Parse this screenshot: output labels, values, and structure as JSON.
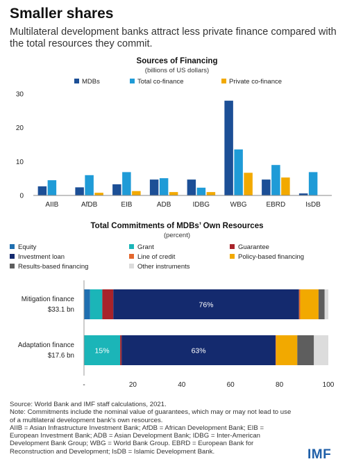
{
  "headline": "Smaller shares",
  "subheadline": "Multilateral development banks attract less private finance compared with the total resources they commit.",
  "chart_data": [
    {
      "type": "bar",
      "title": "Sources of Financing",
      "subtitle": "(billions of US dollars)",
      "categories": [
        "AIIB",
        "AfDB",
        "EIB",
        "ADB",
        "IDBG",
        "WBG",
        "EBRD",
        "IsDB"
      ],
      "series": [
        {
          "name": "MDBs",
          "color": "#1c4f96",
          "values": [
            2.7,
            2.4,
            3.3,
            4.7,
            4.7,
            28.0,
            4.7,
            0.6
          ]
        },
        {
          "name": "Total co-finance",
          "color": "#1f9bd7",
          "values": [
            4.5,
            6.0,
            6.9,
            5.1,
            2.3,
            13.6,
            9.0,
            6.9
          ]
        },
        {
          "name": "Private co-finance",
          "color": "#f2a900",
          "values": [
            0.0,
            0.8,
            1.3,
            1.0,
            1.0,
            6.7,
            5.3,
            0.0
          ]
        }
      ],
      "ylim": [
        0,
        30
      ],
      "yticks": [
        0,
        10,
        20,
        30
      ],
      "xlabel": "",
      "ylabel": "",
      "grid": false,
      "legend_position": "top"
    },
    {
      "type": "bar",
      "stacked": true,
      "orientation": "horizontal",
      "title": "Total Commitments of MDBs’ Own Resources",
      "subtitle": "(percent)",
      "categories": [
        {
          "name": "Mitigation finance",
          "amount": "$33.1 bn"
        },
        {
          "name": "Adaptation finance",
          "amount": "$17.6 bn"
        }
      ],
      "series": [
        {
          "name": "Equity",
          "color": "#1f6fb0",
          "values": [
            2.5,
            0.0
          ]
        },
        {
          "name": "Grant",
          "color": "#1bb5b8",
          "values": [
            5.0,
            14.8
          ]
        },
        {
          "name": "Guarantee",
          "color": "#a8232a",
          "values": [
            4.5,
            0.6
          ]
        },
        {
          "name": "Investment loan",
          "color": "#142a6e",
          "values": [
            76.0,
            63.0
          ]
        },
        {
          "name": "Line of credit",
          "color": "#e3672e",
          "values": [
            0.5,
            0.2
          ]
        },
        {
          "name": "Policy-based financing",
          "color": "#f2a900",
          "values": [
            7.5,
            8.7
          ]
        },
        {
          "name": "Results-based financing",
          "color": "#5e5e5e",
          "values": [
            2.5,
            6.8
          ]
        },
        {
          "name": "Other instruments",
          "color": "#dcdcdc",
          "values": [
            1.5,
            5.9
          ]
        }
      ],
      "data_labels": [
        {
          "category": 0,
          "series": 3,
          "text": "76%"
        },
        {
          "category": 1,
          "series": 1,
          "text": "15%"
        },
        {
          "category": 1,
          "series": 3,
          "text": "63%"
        }
      ],
      "xlim": [
        0,
        100
      ],
      "xticks": [
        "-",
        "20",
        "40",
        "60",
        "80",
        "100"
      ],
      "grid": false,
      "legend_position": "top"
    }
  ],
  "footnote": {
    "source": "Source: World Bank and IMF staff calculations, 2021.",
    "note": "Note: Commitments include the nominal value of guarantees, which may or may not lead to use of a multilateral development bank's own resources.",
    "abbreviations": "AIIB = Asian Infrastructure Investment Bank; AfDB = African Development Bank; EIB = European Investment Bank; ADB = Asian Development Bank; IDBG = Inter-American Development Bank Group; WBG = World Bank Group. EBRD = European Bank for Reconstruction and Development; IsDB = Islamic Development Bank."
  },
  "logo": "IMF"
}
